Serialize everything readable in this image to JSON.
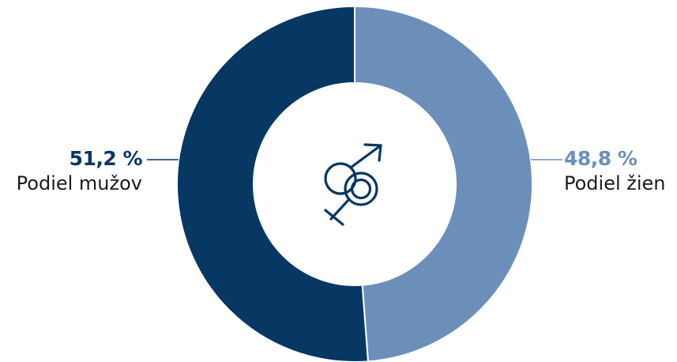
{
  "colors": {
    "men": "#073763",
    "women": "#6b8fb9",
    "leader_men": "#073763",
    "leader_women": "#6b8fb9",
    "icon": "#073763"
  },
  "center_icon": "gender-male-female-icon",
  "chart_data": {
    "type": "pie",
    "variant": "donut",
    "title": "",
    "slices": [
      {
        "label": "Podiel mužov",
        "value": 51.2,
        "value_label": "51,2 %",
        "color": "#073763"
      },
      {
        "label": "Podiel žien",
        "value": 48.8,
        "value_label": "48,8 %",
        "color": "#6b8fb9"
      }
    ],
    "legend": "none"
  }
}
